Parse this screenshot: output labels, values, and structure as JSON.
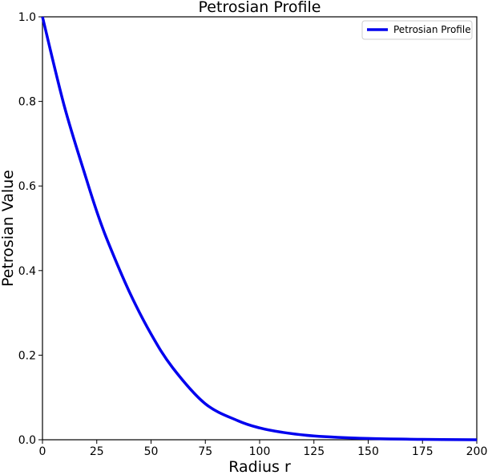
{
  "chart_data": {
    "type": "line",
    "title": "Petrosian Profile",
    "xlabel": "Radius r",
    "ylabel": "Petrosian Value",
    "xlim": [
      0,
      200
    ],
    "ylim": [
      0,
      1
    ],
    "x_ticks": [
      0,
      25,
      50,
      75,
      100,
      125,
      150,
      175,
      200
    ],
    "y_ticks": [
      0.0,
      0.2,
      0.4,
      0.6,
      0.8,
      1.0
    ],
    "x_tick_labels": [
      "0",
      "25",
      "50",
      "75",
      "100",
      "125",
      "150",
      "175",
      "200"
    ],
    "y_tick_labels": [
      "0.0",
      "0.2",
      "0.4",
      "0.6",
      "0.8",
      "1.0"
    ],
    "grid": false,
    "legend_position": "top-right",
    "series": [
      {
        "name": "Petrosian Profile",
        "color": "#0000ee",
        "x": [
          0,
          10,
          20,
          25,
          30,
          40,
          50,
          60,
          75,
          90,
          100,
          110,
          125,
          150,
          175,
          200
        ],
        "y": [
          1.0,
          0.79,
          0.62,
          0.54,
          0.47,
          0.35,
          0.25,
          0.17,
          0.085,
          0.045,
          0.028,
          0.018,
          0.009,
          0.003,
          0.001,
          0.0
        ]
      }
    ]
  }
}
